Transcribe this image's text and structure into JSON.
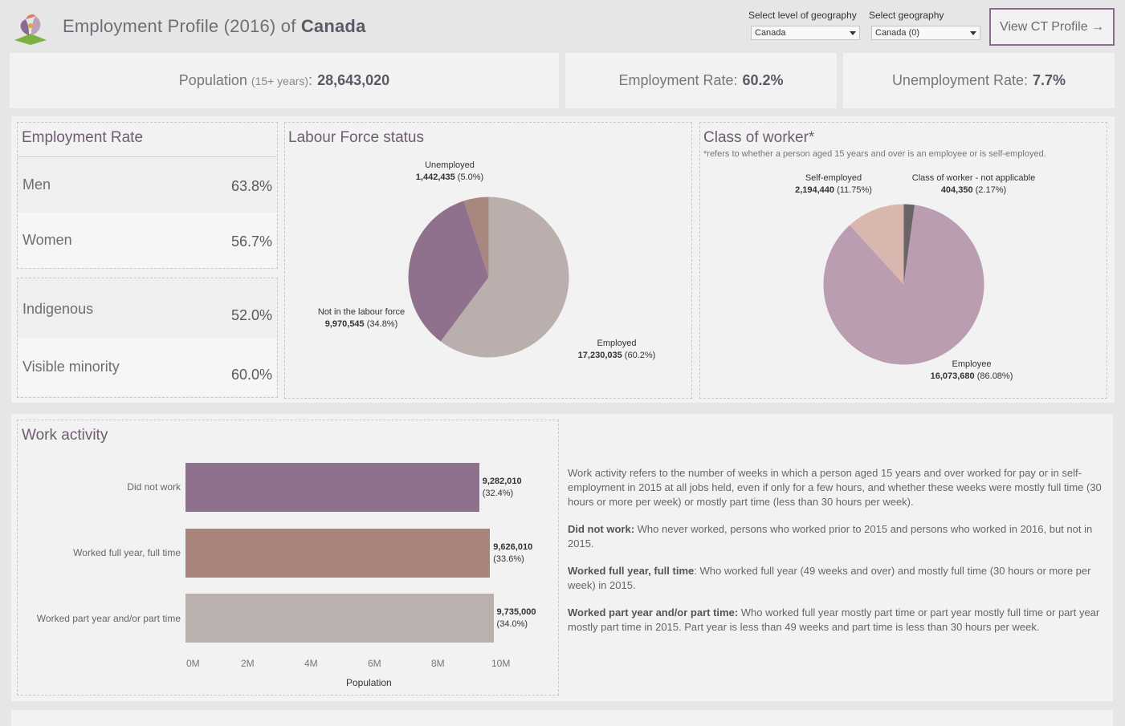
{
  "header": {
    "title_prefix": "Employment Profile (2016) of",
    "title_place": "Canada",
    "geo_level_label": "Select level of geography",
    "geo_level_value": "Canada",
    "geo_label": "Select geography",
    "geo_value": "Canada (0)",
    "view_button": "View CT Profile →"
  },
  "kpis": {
    "population_label": "Population",
    "population_qualifier": "(15+ years)",
    "population_value": "28,643,020",
    "employment_label": "Employment Rate:",
    "employment_value": "60.2%",
    "unemployment_label": "Unemployment Rate:",
    "unemployment_value": "7.7%"
  },
  "employment_rate": {
    "title": "Employment Rate",
    "rows": [
      {
        "label": "Men",
        "value": "63.8%"
      },
      {
        "label": "Women",
        "value": "56.7%"
      },
      {
        "label": "Indigenous",
        "value": "52.0%"
      },
      {
        "label": "Visible minority",
        "value": "60.0%"
      }
    ]
  },
  "labour_force": {
    "title": "Labour Force status",
    "slices": [
      {
        "name": "Unemployed",
        "value": "1,442,435",
        "pct": "(5.0%)",
        "share": 5.0,
        "color": "#a8877f"
      },
      {
        "name": "Employed",
        "value": "17,230,035",
        "pct": "(60.2%)",
        "share": 60.2,
        "color": "#baafac"
      },
      {
        "name": "Not in the labour force",
        "value": "9,970,545",
        "pct": "(34.8%)",
        "share": 34.8,
        "color": "#8f718d"
      }
    ]
  },
  "class_of_worker": {
    "title": "Class of worker*",
    "note": "*refers to whether a person aged 15 years and over is an employee or is self-employed.",
    "slices": [
      {
        "name": "Class of worker - not applicable",
        "value": "404,350",
        "pct": "(2.17%)",
        "share": 2.17,
        "color": "#6b6466"
      },
      {
        "name": "Employee",
        "value": "16,073,680",
        "pct": "(86.08%)",
        "share": 86.08,
        "color": "#bb9db2"
      },
      {
        "name": "Self-employed",
        "value": "2,194,440",
        "pct": "(11.75%)",
        "share": 11.75,
        "color": "#d9b7ae"
      }
    ]
  },
  "work_activity": {
    "title": "Work activity",
    "xlabel": "Population",
    "ticks": [
      "0M",
      "2M",
      "4M",
      "6M",
      "8M",
      "10M"
    ],
    "bars": [
      {
        "category": "Did not work",
        "value": "9,282,010",
        "pct": "(32.4%)",
        "color": "#8f718d"
      },
      {
        "category": "Worked full year, full time",
        "value": "9,626,010",
        "pct": "(33.6%)",
        "color": "#a8847c"
      },
      {
        "category": "Worked part year and/or part time",
        "value": "9,735,000",
        "pct": "(34.0%)",
        "color": "#bab0ad"
      }
    ]
  },
  "chart_data": [
    {
      "type": "pie",
      "title": "Labour Force status",
      "categories": [
        "Unemployed",
        "Employed",
        "Not in the labour force"
      ],
      "values": [
        1442435,
        17230035,
        9970545
      ]
    },
    {
      "type": "pie",
      "title": "Class of worker*",
      "categories": [
        "Class of worker - not applicable",
        "Employee",
        "Self-employed"
      ],
      "values": [
        404350,
        16073680,
        2194440
      ]
    },
    {
      "type": "bar",
      "title": "Work activity",
      "categories": [
        "Did not work",
        "Worked full year, full time",
        "Worked part year and/or part time"
      ],
      "values": [
        9282010,
        9626010,
        9735000
      ],
      "xlabel": "Population",
      "xlim": [
        0,
        10000000
      ]
    }
  ],
  "description": {
    "intro": "Work activity refers to the number of weeks in which a person aged 15 years and over worked for pay or in self-employment in 2015 at all jobs held, even if only for a few hours, and whether these weeks were mostly full time (30 hours or more per week) or mostly part time (less than 30 hours per week).",
    "did_not_work_term": "Did not work:",
    "did_not_work_text": " Who never worked, persons who worked prior to 2015 and persons who worked in 2016, but not in 2015.",
    "full_year_term": "Worked full year, full time",
    "full_year_text": ": Who worked full year (49 weeks and over) and mostly full time (30 hours or more per week) in 2015.",
    "part_year_term": "Worked part year and/or part time:",
    "part_year_text": " Who worked full year mostly part time or part year mostly full time or part year mostly part time in 2015. Part year is less than 49 weeks and part time is less than 30 hours per week."
  }
}
